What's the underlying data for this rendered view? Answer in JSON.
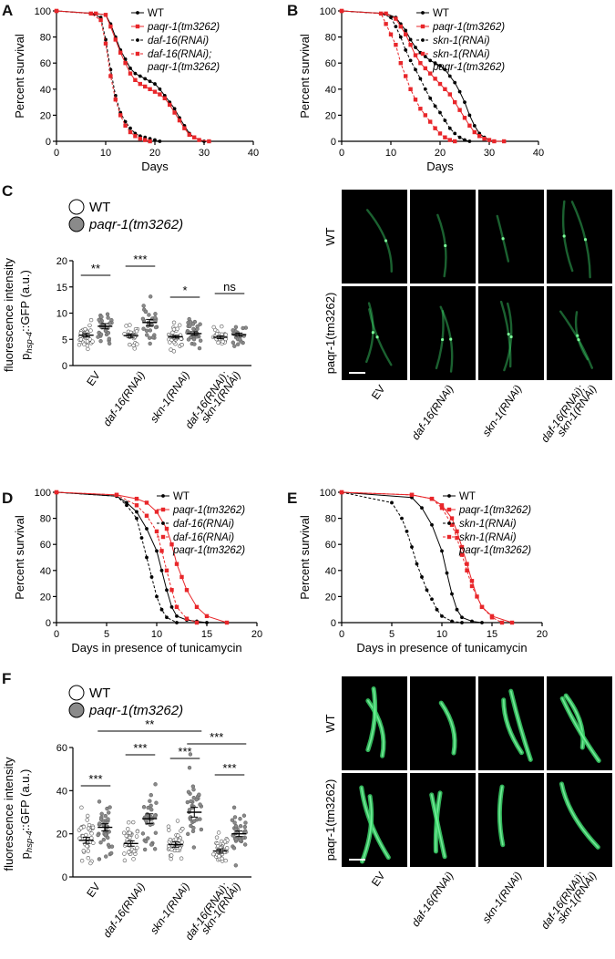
{
  "colors": {
    "black": "#000000",
    "red": "#e8262a",
    "gray_fill": "#8a8a8a",
    "gfp": "#3cd66b",
    "panel_bg": "#000000"
  },
  "panels": {
    "A": "A",
    "B": "B",
    "C": "C",
    "D": "D",
    "E": "E",
    "F": "F"
  },
  "chart_data": [
    {
      "id": "A",
      "type": "line",
      "xlabel": "Days",
      "ylabel": "Percent survival",
      "xlim": [
        0,
        40
      ],
      "ylim": [
        0,
        100
      ],
      "xticks": [
        "0",
        "10",
        "20",
        "30",
        "40"
      ],
      "yticks": [
        "0",
        "20",
        "40",
        "60",
        "80",
        "100"
      ],
      "legend_placement": "top-right",
      "series": [
        {
          "name": "WT",
          "color": "#000000",
          "style": "solid",
          "marker": "dot",
          "x": [
            0,
            8,
            10,
            11,
            12,
            13,
            14,
            15,
            16,
            17,
            18,
            19,
            20,
            21,
            22,
            23,
            24,
            25,
            26,
            27,
            28,
            29,
            30
          ],
          "y": [
            100,
            98,
            97,
            90,
            80,
            70,
            63,
            56,
            52,
            50,
            48,
            46,
            44,
            40,
            35,
            30,
            25,
            18,
            12,
            6,
            3,
            1,
            0
          ]
        },
        {
          "name": "paqr-1(tm3262)",
          "color": "#e8262a",
          "style": "solid",
          "marker": "square",
          "x": [
            0,
            8,
            10,
            11,
            12,
            13,
            14,
            15,
            16,
            17,
            18,
            19,
            20,
            21,
            22,
            23,
            24,
            25,
            26,
            27,
            28,
            29,
            31
          ],
          "y": [
            100,
            98,
            97,
            88,
            78,
            68,
            60,
            52,
            47,
            44,
            42,
            40,
            38,
            36,
            33,
            28,
            22,
            16,
            10,
            5,
            3,
            1,
            0
          ]
        },
        {
          "name": "daf-16(RNAi)",
          "color": "#000000",
          "style": "dashed",
          "marker": "dot",
          "x": [
            0,
            7,
            9,
            10,
            11,
            12,
            13,
            14,
            15,
            16,
            17,
            18,
            19,
            20,
            21
          ],
          "y": [
            100,
            98,
            95,
            78,
            55,
            35,
            22,
            15,
            10,
            6,
            4,
            3,
            2,
            1,
            0
          ]
        },
        {
          "name": "daf-16(RNAi); paqr-1(tm3262)",
          "color": "#e8262a",
          "style": "dashed",
          "marker": "square",
          "x": [
            0,
            7,
            9,
            10,
            11,
            12,
            13,
            14,
            15,
            16,
            17,
            18,
            19
          ],
          "y": [
            100,
            98,
            93,
            75,
            50,
            32,
            20,
            12,
            7,
            4,
            2,
            1,
            0
          ]
        }
      ]
    },
    {
      "id": "B",
      "type": "line",
      "xlabel": "Days",
      "ylabel": "Percent survival",
      "xlim": [
        0,
        40
      ],
      "ylim": [
        0,
        100
      ],
      "xticks": [
        "0",
        "10",
        "20",
        "30",
        "40"
      ],
      "yticks": [
        "0",
        "20",
        "40",
        "60",
        "80",
        "100"
      ],
      "legend_placement": "top-right",
      "series": [
        {
          "name": "WT",
          "color": "#000000",
          "style": "solid",
          "marker": "dot",
          "x": [
            0,
            9,
            11,
            12,
            13,
            14,
            15,
            16,
            17,
            18,
            19,
            20,
            21,
            22,
            23,
            24,
            25,
            26,
            27,
            28,
            29,
            30,
            31,
            33
          ],
          "y": [
            100,
            98,
            95,
            90,
            85,
            78,
            72,
            68,
            65,
            62,
            60,
            58,
            55,
            50,
            45,
            38,
            30,
            20,
            12,
            6,
            3,
            1,
            0,
            0
          ]
        },
        {
          "name": "paqr-1(tm3262)",
          "color": "#e8262a",
          "style": "solid",
          "marker": "square",
          "x": [
            0,
            9,
            11,
            12,
            13,
            14,
            15,
            16,
            17,
            18,
            19,
            20,
            21,
            22,
            23,
            24,
            25,
            26,
            27,
            28,
            29,
            30,
            31,
            33
          ],
          "y": [
            100,
            98,
            94,
            88,
            82,
            74,
            66,
            60,
            56,
            52,
            48,
            44,
            40,
            36,
            30,
            24,
            18,
            12,
            7,
            4,
            2,
            1,
            0,
            0
          ]
        },
        {
          "name": "skn-1(RNAi)",
          "color": "#000000",
          "style": "dashed",
          "marker": "dot",
          "x": [
            0,
            8,
            10,
            11,
            12,
            13,
            14,
            15,
            16,
            17,
            18,
            19,
            20,
            21,
            22,
            23,
            24,
            25,
            26
          ],
          "y": [
            100,
            98,
            95,
            88,
            80,
            70,
            62,
            55,
            48,
            40,
            33,
            27,
            22,
            16,
            10,
            6,
            3,
            1,
            0
          ]
        },
        {
          "name": "skn-1(RNAi) paqr-1(tm3262)",
          "color": "#e8262a",
          "style": "dashed",
          "marker": "square",
          "x": [
            0,
            8,
            9,
            10,
            11,
            12,
            13,
            14,
            15,
            16,
            17,
            18,
            19,
            20,
            21,
            22,
            23
          ],
          "y": [
            100,
            98,
            90,
            82,
            74,
            60,
            50,
            40,
            32,
            25,
            20,
            15,
            10,
            6,
            3,
            1,
            0
          ]
        }
      ]
    },
    {
      "id": "C",
      "type": "scatter",
      "ylabel": "fluorescence intensity",
      "ylabel2_pre": "p",
      "ylabel2_sub": "hsp-4",
      "ylabel2_post": "::GFP (a.u.)",
      "ylim": [
        0,
        20
      ],
      "yticks": [
        "0",
        "5",
        "10",
        "15",
        "20"
      ],
      "legend": [
        {
          "name": "WT",
          "fill": "#ffffff"
        },
        {
          "name": "paqr-1(tm3262)",
          "fill": "#8a8a8a"
        }
      ],
      "categories": [
        "EV",
        "daf-16(RNAi)",
        "skn-1(RNAi)",
        "daf-16(RNAi); skn-1(RNAi)"
      ],
      "series": [
        {
          "name": "WT",
          "means": [
            5.8,
            5.7,
            5.5,
            5.4
          ],
          "sd": [
            1.2,
            1.1,
            1.0,
            0.9
          ],
          "n": [
            30,
            24,
            32,
            22
          ]
        },
        {
          "name": "paqr-1(tm3262)",
          "means": [
            7.5,
            8.2,
            6.1,
            5.9
          ],
          "sd": [
            1.8,
            2.2,
            1.3,
            0.9
          ],
          "n": [
            30,
            30,
            32,
            20
          ]
        }
      ],
      "significance": [
        {
          "label": "**",
          "group": 0
        },
        {
          "label": "***",
          "group": 1
        },
        {
          "label": "*",
          "group": 2
        },
        {
          "label": "ns",
          "group": 3
        }
      ]
    },
    {
      "id": "D",
      "type": "line",
      "xlabel": "Days in presence of tunicamycin",
      "ylabel": "Percent survival",
      "xlim": [
        0,
        20
      ],
      "ylim": [
        0,
        100
      ],
      "xticks": [
        "0",
        "5",
        "10",
        "15",
        "20"
      ],
      "yticks": [
        "0",
        "20",
        "40",
        "60",
        "80",
        "100"
      ],
      "legend_placement": "top-right",
      "series": [
        {
          "name": "WT",
          "color": "#000000",
          "style": "solid",
          "marker": "dot",
          "x": [
            0,
            6,
            7,
            8,
            9,
            10,
            10.5,
            11,
            11.5,
            12,
            13,
            14,
            15
          ],
          "y": [
            100,
            97,
            92,
            85,
            72,
            55,
            40,
            25,
            12,
            5,
            2,
            1,
            0
          ]
        },
        {
          "name": "paqr-1(tm3262)",
          "color": "#e8262a",
          "style": "solid",
          "marker": "square",
          "x": [
            0,
            6,
            8,
            9,
            10,
            11,
            11.5,
            12,
            12.5,
            13,
            14,
            15,
            17
          ],
          "y": [
            100,
            98,
            95,
            92,
            85,
            72,
            60,
            45,
            35,
            25,
            12,
            5,
            0
          ]
        },
        {
          "name": "daf-16(RNAi)",
          "color": "#000000",
          "style": "dashed",
          "marker": "dot",
          "x": [
            0,
            6,
            7,
            8,
            8.5,
            9,
            9.5,
            10,
            10.5,
            11,
            12
          ],
          "y": [
            100,
            97,
            90,
            80,
            65,
            50,
            35,
            20,
            10,
            4,
            0
          ]
        },
        {
          "name": "daf-16(RNAi) paqr-1(tm3262)",
          "color": "#e8262a",
          "style": "dashed",
          "marker": "square",
          "x": [
            0,
            6,
            8,
            9,
            10,
            10.5,
            11,
            11.5,
            12,
            13,
            14
          ],
          "y": [
            100,
            98,
            90,
            82,
            70,
            55,
            40,
            25,
            12,
            3,
            0
          ]
        }
      ]
    },
    {
      "id": "E",
      "type": "line",
      "xlabel": "Days in presence of tunicamycin",
      "ylabel": "Percent survival",
      "xlim": [
        0,
        20
      ],
      "ylim": [
        0,
        100
      ],
      "xticks": [
        "0",
        "5",
        "10",
        "15",
        "20"
      ],
      "yticks": [
        "0",
        "20",
        "40",
        "60",
        "80",
        "100"
      ],
      "legend_placement": "top-right",
      "series": [
        {
          "name": "WT",
          "color": "#000000",
          "style": "solid",
          "marker": "dot",
          "x": [
            0,
            7,
            8,
            9,
            10,
            10.5,
            11,
            11.5,
            12,
            13,
            14
          ],
          "y": [
            100,
            96,
            88,
            75,
            55,
            38,
            22,
            10,
            4,
            1,
            0
          ]
        },
        {
          "name": "paqr-1(tm3262)",
          "color": "#e8262a",
          "style": "solid",
          "marker": "square",
          "x": [
            0,
            7,
            9,
            10,
            11,
            11.5,
            12,
            12.5,
            13,
            13.5,
            14,
            15,
            17
          ],
          "y": [
            100,
            98,
            95,
            90,
            80,
            70,
            58,
            45,
            32,
            20,
            12,
            5,
            0
          ]
        },
        {
          "name": "skn-1(RNAi)",
          "color": "#000000",
          "style": "dashed",
          "marker": "dot",
          "x": [
            0,
            5,
            6,
            6.5,
            7,
            7.5,
            8,
            8.5,
            9,
            9.5,
            10,
            11,
            12
          ],
          "y": [
            100,
            92,
            80,
            70,
            58,
            45,
            35,
            25,
            18,
            10,
            5,
            1,
            0
          ]
        },
        {
          "name": "skn-1(RNAi) paqr-1(tm3262)",
          "color": "#e8262a",
          "style": "dashed",
          "marker": "square",
          "x": [
            0,
            7,
            9,
            10,
            11,
            11.5,
            12,
            12.5,
            13,
            14,
            15,
            16
          ],
          "y": [
            100,
            98,
            95,
            88,
            75,
            65,
            52,
            40,
            28,
            12,
            4,
            0
          ]
        }
      ]
    },
    {
      "id": "F",
      "type": "scatter",
      "ylabel": "fluorescence intensity",
      "ylabel2_pre": "p",
      "ylabel2_sub": "hsp-4",
      "ylabel2_post": "::GFP (a.u.)",
      "ylim": [
        0,
        60
      ],
      "yticks": [
        "0",
        "20",
        "40",
        "60"
      ],
      "legend": [
        {
          "name": "WT",
          "fill": "#ffffff"
        },
        {
          "name": "paqr-1(tm3262)",
          "fill": "#8a8a8a"
        }
      ],
      "categories": [
        "EV",
        "daf-16(RNAi)",
        "skn-1(RNAi)",
        "daf-16(RNAi); skn-1(RNAi)"
      ],
      "series": [
        {
          "name": "WT",
          "means": [
            17,
            15.5,
            15,
            12
          ],
          "sd": [
            6,
            5,
            5,
            4
          ],
          "n": [
            40,
            36,
            40,
            36
          ]
        },
        {
          "name": "paqr-1(tm3262)",
          "means": [
            23,
            27,
            30,
            20
          ],
          "sd": [
            7,
            9,
            9,
            5
          ],
          "n": [
            40,
            36,
            36,
            34
          ]
        }
      ],
      "significance": [
        {
          "label": "***",
          "group": 0
        },
        {
          "label": "***",
          "group": 1
        },
        {
          "label": "***",
          "group": 2
        },
        {
          "label": "***",
          "group": 3
        }
      ],
      "cross_significance": [
        {
          "label": "**",
          "from": [
            0,
            1
          ],
          "to": [
            2,
            1
          ]
        },
        {
          "label": "***",
          "from": [
            2,
            1
          ],
          "to": [
            3,
            1
          ]
        }
      ]
    }
  ],
  "images_C": {
    "row_labels": [
      "WT",
      "paqr-1(tm3262)"
    ],
    "col_labels": [
      "EV",
      "daf-16(RNAi)",
      "skn-1(RNAi)",
      "daf-16(RNAi); skn-1(RNAi)"
    ]
  },
  "images_F": {
    "row_labels": [
      "WT",
      "paqr-1(tm3262)"
    ],
    "col_labels": [
      "EV",
      "daf-16(RNAi)",
      "skn-1(RNAi)",
      "daf-16(RNAi); skn-1(RNAi)"
    ]
  }
}
